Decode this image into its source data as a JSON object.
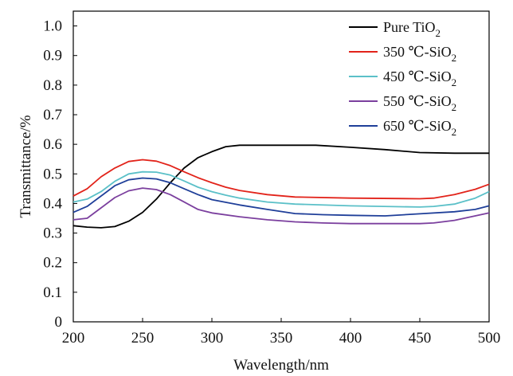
{
  "chart_data": {
    "type": "line",
    "xlabel": "Wavelength/nm",
    "ylabel": "Transmittance/%",
    "xlim": [
      200,
      500
    ],
    "ylim": [
      0,
      1.05
    ],
    "xticks": [
      "200",
      "250",
      "300",
      "350",
      "400",
      "450",
      "500"
    ],
    "yticks": [
      "0",
      "0.1",
      "0.2",
      "0.3",
      "0.4",
      "0.5",
      "0.6",
      "0.7",
      "0.8",
      "0.9",
      "1.0"
    ],
    "grid": false,
    "legend_position": "top-right",
    "series": [
      {
        "name": "Pure TiO2",
        "name_parts": {
          "pre": "Pure TiO",
          "sub": "2"
        },
        "color": "#000000",
        "points": [
          [
            200,
            0.325
          ],
          [
            210,
            0.32
          ],
          [
            220,
            0.318
          ],
          [
            230,
            0.322
          ],
          [
            240,
            0.34
          ],
          [
            250,
            0.37
          ],
          [
            260,
            0.415
          ],
          [
            270,
            0.47
          ],
          [
            280,
            0.52
          ],
          [
            290,
            0.555
          ],
          [
            300,
            0.575
          ],
          [
            310,
            0.592
          ],
          [
            320,
            0.597
          ],
          [
            350,
            0.597
          ],
          [
            375,
            0.597
          ],
          [
            400,
            0.59
          ],
          [
            425,
            0.582
          ],
          [
            450,
            0.572
          ],
          [
            475,
            0.57
          ],
          [
            500,
            0.57
          ]
        ]
      },
      {
        "name": "350 ℃-SiO2",
        "name_parts": {
          "pre": "350 ℃-SiO",
          "sub": "2"
        },
        "color": "#e2231a",
        "points": [
          [
            200,
            0.425
          ],
          [
            210,
            0.45
          ],
          [
            220,
            0.49
          ],
          [
            230,
            0.52
          ],
          [
            240,
            0.542
          ],
          [
            250,
            0.548
          ],
          [
            260,
            0.543
          ],
          [
            270,
            0.528
          ],
          [
            280,
            0.507
          ],
          [
            290,
            0.487
          ],
          [
            300,
            0.47
          ],
          [
            310,
            0.455
          ],
          [
            320,
            0.444
          ],
          [
            340,
            0.43
          ],
          [
            360,
            0.422
          ],
          [
            400,
            0.418
          ],
          [
            450,
            0.416
          ],
          [
            460,
            0.418
          ],
          [
            475,
            0.43
          ],
          [
            490,
            0.448
          ],
          [
            500,
            0.465
          ]
        ]
      },
      {
        "name": "450 ℃-SiO2",
        "name_parts": {
          "pre": "450 ℃-SiO",
          "sub": "2"
        },
        "color": "#5bc0c8",
        "points": [
          [
            200,
            0.405
          ],
          [
            210,
            0.415
          ],
          [
            220,
            0.44
          ],
          [
            230,
            0.475
          ],
          [
            240,
            0.5
          ],
          [
            250,
            0.507
          ],
          [
            260,
            0.506
          ],
          [
            270,
            0.496
          ],
          [
            280,
            0.476
          ],
          [
            290,
            0.455
          ],
          [
            300,
            0.44
          ],
          [
            310,
            0.428
          ],
          [
            320,
            0.418
          ],
          [
            340,
            0.405
          ],
          [
            360,
            0.398
          ],
          [
            400,
            0.392
          ],
          [
            450,
            0.388
          ],
          [
            460,
            0.39
          ],
          [
            475,
            0.398
          ],
          [
            490,
            0.418
          ],
          [
            500,
            0.44
          ]
        ]
      },
      {
        "name": "550 ℃-SiO2",
        "name_parts": {
          "pre": "550 ℃-SiO",
          "sub": "2"
        },
        "color": "#7b3f9e",
        "points": [
          [
            200,
            0.345
          ],
          [
            210,
            0.35
          ],
          [
            220,
            0.385
          ],
          [
            230,
            0.42
          ],
          [
            240,
            0.443
          ],
          [
            250,
            0.452
          ],
          [
            260,
            0.447
          ],
          [
            270,
            0.43
          ],
          [
            280,
            0.405
          ],
          [
            290,
            0.38
          ],
          [
            300,
            0.368
          ],
          [
            320,
            0.355
          ],
          [
            340,
            0.345
          ],
          [
            360,
            0.338
          ],
          [
            380,
            0.334
          ],
          [
            400,
            0.332
          ],
          [
            450,
            0.332
          ],
          [
            460,
            0.334
          ],
          [
            475,
            0.343
          ],
          [
            490,
            0.358
          ],
          [
            500,
            0.368
          ]
        ]
      },
      {
        "name": "650 ℃-SiO2",
        "name_parts": {
          "pre": "650 ℃-SiO",
          "sub": "2"
        },
        "color": "#1f3f99",
        "points": [
          [
            200,
            0.37
          ],
          [
            210,
            0.39
          ],
          [
            220,
            0.425
          ],
          [
            230,
            0.46
          ],
          [
            240,
            0.48
          ],
          [
            250,
            0.486
          ],
          [
            260,
            0.483
          ],
          [
            270,
            0.47
          ],
          [
            280,
            0.45
          ],
          [
            290,
            0.43
          ],
          [
            300,
            0.413
          ],
          [
            320,
            0.395
          ],
          [
            340,
            0.38
          ],
          [
            360,
            0.366
          ],
          [
            380,
            0.362
          ],
          [
            400,
            0.36
          ],
          [
            425,
            0.358
          ],
          [
            450,
            0.365
          ],
          [
            475,
            0.372
          ],
          [
            490,
            0.38
          ],
          [
            500,
            0.392
          ]
        ]
      }
    ]
  }
}
